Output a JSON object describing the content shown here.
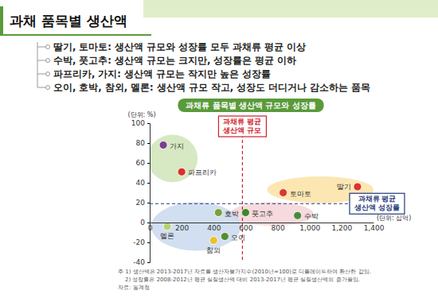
{
  "slide": {
    "title": "과채 품목별 생산액",
    "bullets": [
      "딸기, 토마토: 생산액 규모와 성장률 모두 과채류 평균 이상",
      "수박, 풋고추: 생산액 규모는 크지만, 성장률은 평균 이하",
      "파프리카, 가지: 생산액 규모는 작지만 높은 성장률",
      "오이, 호박, 참외, 멜론: 생산액 규모 작고, 성장도 더디거나 감소하는 품목"
    ]
  },
  "chart_data": {
    "type": "scatter",
    "title": "과채류 품목별 생산액 규모와 성장률",
    "xlabel": "(단위: 십억)",
    "ylabel": "(단위: %)",
    "labels": [
      "가지",
      "파프리카",
      "딸기",
      "토마토",
      "수박",
      "풋고추",
      "호박",
      "오이",
      "참외",
      "멜론"
    ],
    "x": [
      85,
      200,
      1300,
      835,
      925,
      600,
      430,
      470,
      400,
      110
    ],
    "values": [
      78,
      51,
      36,
      30,
      7,
      10,
      10,
      -14,
      -18,
      -4
    ],
    "colors": [
      "#7b3f8c",
      "#d9302a",
      "#e0302a",
      "#d83a2a",
      "#4a8a3a",
      "#3d8a2a",
      "#7aa23a",
      "#4f8f30",
      "#e8c22a",
      "#b8d070"
    ],
    "xlim": [
      0,
      1400
    ],
    "xticks": [
      0,
      200,
      400,
      600,
      800,
      {
        "value": 1000,
        "label": "1,000"
      },
      {
        "value": 1200,
        "label": "1,200"
      },
      {
        "value": 1400,
        "label": "1,400"
      }
    ],
    "ylim": [
      -40,
      100
    ],
    "yticks": [
      -40,
      -20,
      0,
      20,
      40,
      60,
      80,
      100
    ],
    "reference_lines": [
      {
        "axis": "x",
        "value": 580,
        "label": [
          "과채류 평균",
          "생산액 규모"
        ]
      },
      {
        "axis": "y",
        "value": 19,
        "label": [
          "과채류 평균",
          "생산액 성장률"
        ]
      }
    ],
    "notes": [
      "주 1) 생산액은 2013-2017년 자료를 생산자물가지수(2010년=100)로 디플레이트하여 환산한 값임.",
      "2) 성장률은 2008-2012년 평균 실질생산액 대비 2013-2017년 평균 실질생산액의 증가율임.",
      "자료: 통계청"
    ]
  }
}
